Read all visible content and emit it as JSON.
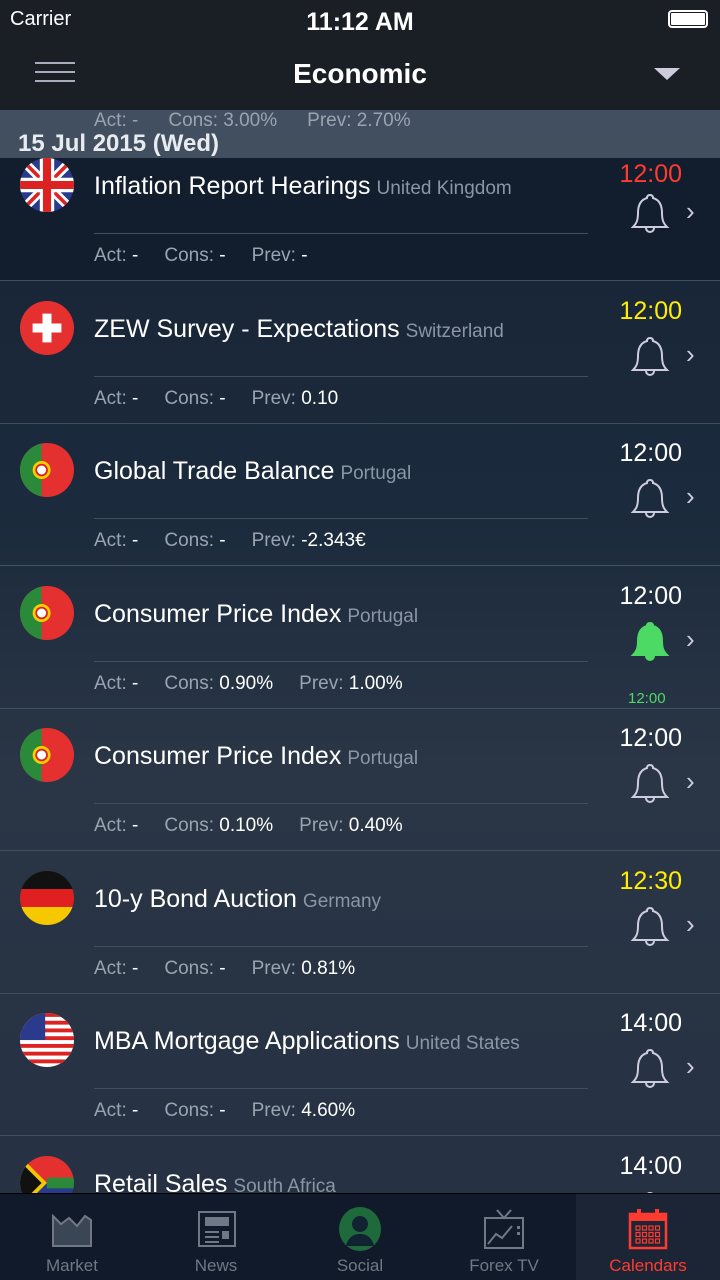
{
  "status": {
    "carrier": "Carrier",
    "time": "11:12 AM"
  },
  "nav": {
    "title": "Economic"
  },
  "ghost_row": {
    "act": "Act: -",
    "cons": "Cons: 3.00%",
    "prev": "Prev: 2.70%"
  },
  "section": {
    "date": "15 Jul 2015 (Wed)"
  },
  "labels": {
    "act": "Act:",
    "cons": "Cons:",
    "prev": "Prev:"
  },
  "rows": [
    {
      "name": "Inflation Report Hearings",
      "country": "United Kingdom",
      "flag": "uk",
      "time": "12:00",
      "time_color": "#ff3b30",
      "act": "-",
      "cons": "-",
      "prev": "-",
      "alert": false
    },
    {
      "name": "ZEW Survey - Expectations",
      "country": "Switzerland",
      "flag": "ch",
      "time": "12:00",
      "time_color": "#ffee00",
      "act": "-",
      "cons": "-",
      "prev": "0.10",
      "alert": false
    },
    {
      "name": "Global Trade Balance",
      "country": "Portugal",
      "flag": "pt",
      "time": "12:00",
      "time_color": "#ffffff",
      "act": "-",
      "cons": "-",
      "prev": "-2.343€",
      "alert": false
    },
    {
      "name": "Consumer Price Index",
      "country": "Portugal",
      "flag": "pt",
      "time": "12:00",
      "time_color": "#ffffff",
      "act": "-",
      "cons": "0.90%",
      "prev": "1.00%",
      "alert": true,
      "alert_time": "12:00"
    },
    {
      "name": "Consumer Price Index",
      "country": "Portugal",
      "flag": "pt",
      "time": "12:00",
      "time_color": "#ffffff",
      "act": "-",
      "cons": "0.10%",
      "prev": "0.40%",
      "alert": false
    },
    {
      "name": "10-y Bond Auction",
      "country": "Germany",
      "flag": "de",
      "time": "12:30",
      "time_color": "#ffee00",
      "act": "-",
      "cons": "-",
      "prev": "0.81%",
      "alert": false
    },
    {
      "name": "MBA Mortgage Applications",
      "country": "United States",
      "flag": "us",
      "time": "14:00",
      "time_color": "#ffffff",
      "act": "-",
      "cons": "-",
      "prev": "4.60%",
      "alert": false
    },
    {
      "name": "Retail Sales",
      "country": "South Africa",
      "flag": "za",
      "time": "14:00",
      "time_color": "#ffffff",
      "act": "",
      "cons": "",
      "prev": "",
      "alert": false
    }
  ],
  "tabs": [
    {
      "label": "Market",
      "icon": "market-chart-icon",
      "active": false
    },
    {
      "label": "News",
      "icon": "newspaper-icon",
      "active": false
    },
    {
      "label": "Social",
      "icon": "person-icon",
      "active": false
    },
    {
      "label": "Forex TV",
      "icon": "tv-icon",
      "active": false
    },
    {
      "label": "Calendars",
      "icon": "calendar-icon",
      "active": true
    }
  ],
  "colors": {
    "active": "#ff3b30",
    "alert": "#4cd964"
  }
}
